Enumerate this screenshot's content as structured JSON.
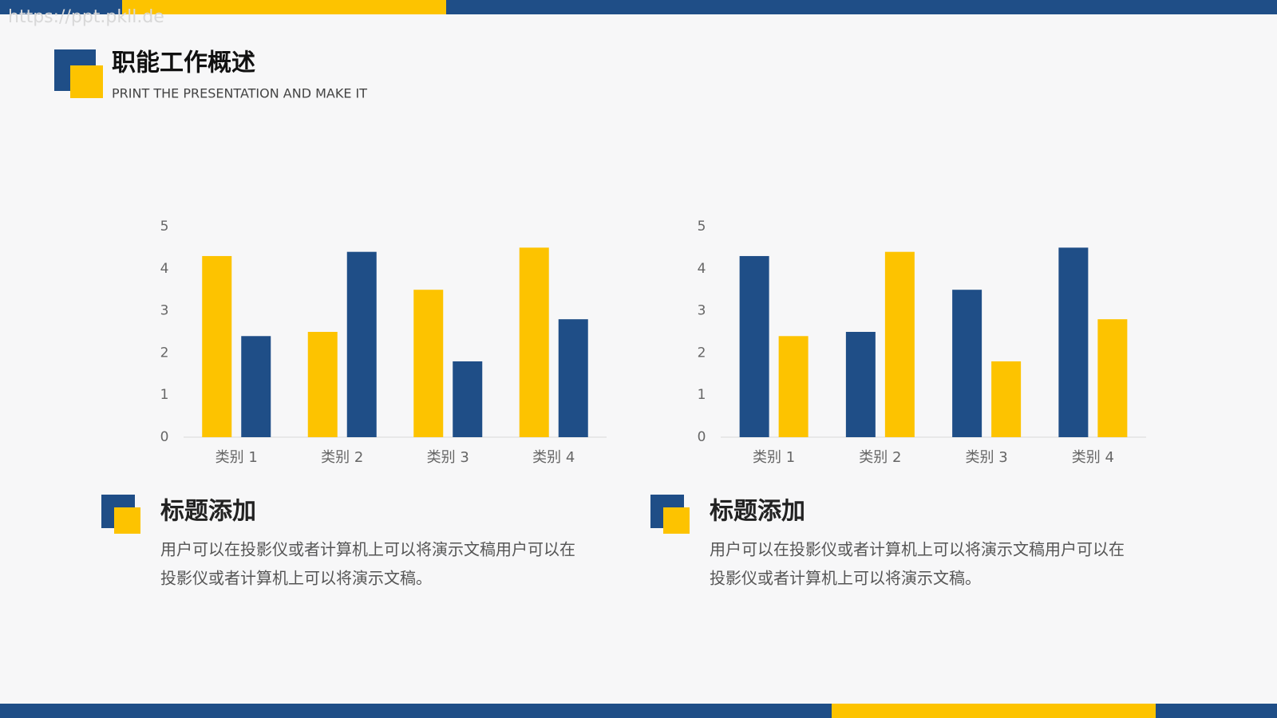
{
  "watermark": "https://ppt.pkll.de",
  "header": {
    "title": "职能工作概述",
    "subtitle": "PRINT THE PRESENTATION AND MAKE IT"
  },
  "chart_data": [
    {
      "type": "bar",
      "categories": [
        "类别 1",
        "类别 2",
        "类别 3",
        "类别 4"
      ],
      "series": [
        {
          "color": "#fdc300",
          "values": [
            4.3,
            2.5,
            3.5,
            4.5
          ]
        },
        {
          "color": "#1f4e87",
          "values": [
            2.4,
            4.4,
            1.8,
            2.8
          ]
        }
      ],
      "ylim": [
        0,
        5
      ],
      "yticks": [
        0,
        1,
        2,
        3,
        4,
        5
      ],
      "grid": false
    },
    {
      "type": "bar",
      "categories": [
        "类别 1",
        "类别 2",
        "类别 3",
        "类别 4"
      ],
      "series": [
        {
          "color": "#1f4e87",
          "values": [
            4.3,
            2.5,
            3.5,
            4.5
          ]
        },
        {
          "color": "#fdc300",
          "values": [
            2.4,
            4.4,
            1.8,
            2.8
          ]
        }
      ],
      "ylim": [
        0,
        5
      ],
      "yticks": [
        0,
        1,
        2,
        3,
        4,
        5
      ],
      "grid": false
    }
  ],
  "blocks": [
    {
      "heading": "标题添加",
      "body": [
        "用户可以在投影仪或者计算机上可以将演示文稿用户可以在",
        "投影仪或者计算机上可以将演示文稿。"
      ]
    },
    {
      "heading": "标题添加",
      "body": [
        "用户可以在投影仪或者计算机上可以将演示文稿用户可以在",
        "投影仪或者计算机上可以将演示文稿。"
      ]
    }
  ]
}
